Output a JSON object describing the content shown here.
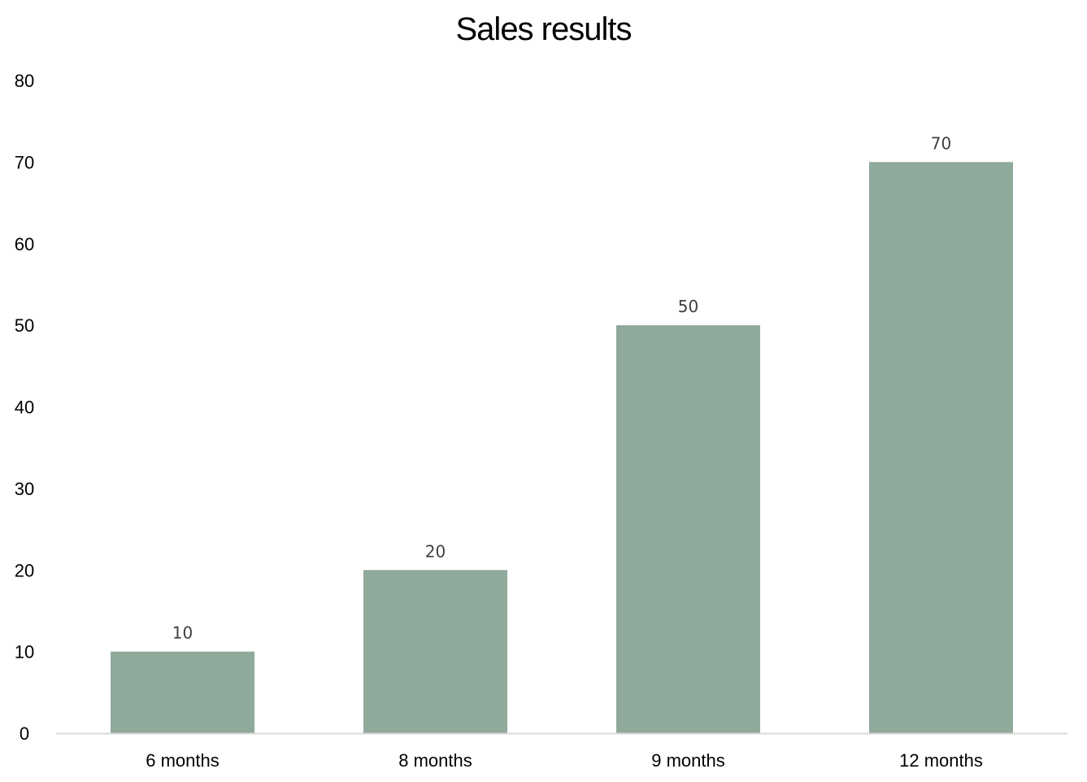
{
  "chart_data": {
    "type": "bar",
    "title": "Sales results",
    "xlabel": "",
    "ylabel": "",
    "categories": [
      "6 months",
      "8 months",
      "9 months",
      "12 months"
    ],
    "values": [
      10,
      20,
      50,
      70
    ],
    "data_labels": [
      "10",
      "20",
      "50",
      "70"
    ],
    "y_ticks": [
      0,
      10,
      20,
      30,
      40,
      50,
      60,
      70,
      80
    ],
    "ylim": [
      0,
      80
    ],
    "grid": false,
    "legend": "none",
    "bar_color": "#8fa99b",
    "axis_color": "#d9d9d9",
    "data_label_color": "#404040"
  }
}
